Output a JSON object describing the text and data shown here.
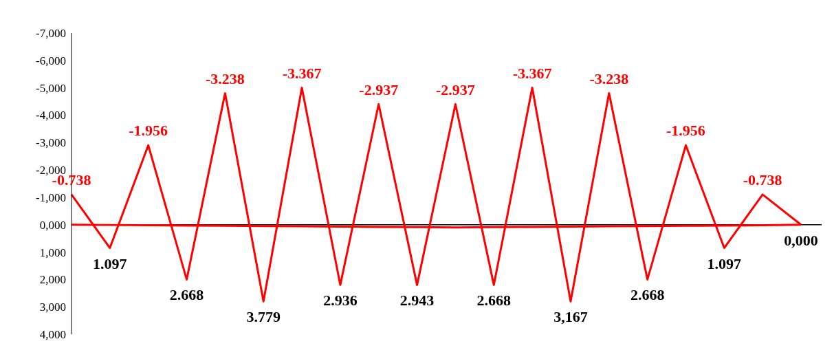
{
  "chart_data": {
    "type": "line",
    "categories": [
      null,
      null,
      null,
      null,
      null,
      null,
      null,
      null,
      null,
      null,
      null,
      null,
      null,
      null,
      null,
      null,
      null,
      null,
      null,
      null
    ],
    "series": [
      {
        "color": "#ff0000",
        "values": [
          -1100,
          850,
          -2900,
          2000,
          -4800,
          2800,
          -5000,
          2200,
          -4400,
          2200,
          -4400,
          2200,
          -5000,
          2800,
          -4800,
          2000,
          -2900,
          850,
          -1100,
          0
        ]
      },
      {
        "color": "#ff0000",
        "values": [
          0,
          10,
          20,
          30,
          40,
          50,
          60,
          70,
          80,
          90,
          100,
          90,
          80,
          70,
          60,
          50,
          40,
          30,
          20,
          0
        ]
      }
    ],
    "ylim": [
      4000,
      -7000
    ],
    "yticks": [
      {
        "value": -7000,
        "label": "-7,000"
      },
      {
        "value": -6000,
        "label": "-6,000"
      },
      {
        "value": -5000,
        "label": "-5,000"
      },
      {
        "value": -4000,
        "label": "-4,000"
      },
      {
        "value": -3000,
        "label": "-3,000"
      },
      {
        "value": -2000,
        "label": "-2,000"
      },
      {
        "value": -1000,
        "label": "-1,000"
      },
      {
        "value": 0,
        "label": "0,000"
      },
      {
        "value": 1000,
        "label": "1,000"
      },
      {
        "value": 2000,
        "label": "2,000"
      },
      {
        "value": 3000,
        "label": "3,000"
      },
      {
        "value": 4000,
        "label": "4,000"
      }
    ],
    "tick_labels": "y",
    "grid": false,
    "legend": false,
    "line_style": "solid",
    "marker": "none",
    "ref_lines": [
      {
        "axis": "y",
        "value": 0,
        "color": "#000000"
      }
    ],
    "annotations": [
      "-0.738",
      "1.097",
      "-1.956",
      "2.668",
      "-3.238",
      "3.779",
      "-3.367",
      "2.936",
      "-2.937",
      "2.943",
      "-2.937",
      "2.668",
      "-3.367",
      "3,167",
      "-3.238",
      "2.668",
      "-1.956",
      "1.097",
      "-0.738",
      "0,000"
    ]
  }
}
